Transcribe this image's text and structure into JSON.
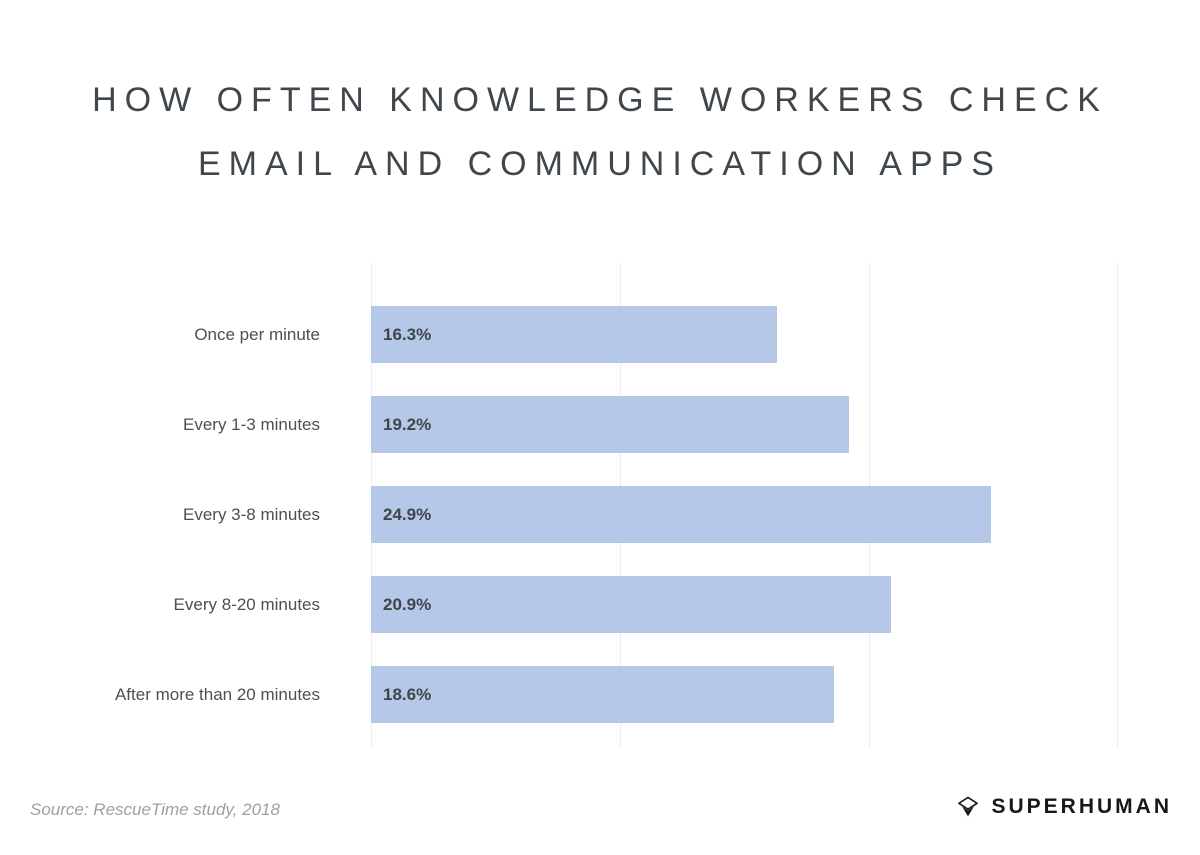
{
  "title": {
    "line1": "HOW OFTEN KNOWLEDGE WORKERS CHECK",
    "line2": "EMAIL AND COMMUNICATION APPS"
  },
  "chart_data": {
    "type": "bar",
    "orientation": "horizontal",
    "title": "How often knowledge workers check email and communication apps",
    "categories": [
      "Once per minute",
      "Every 1-3 minutes",
      "Every 3-8 minutes",
      "Every 8-20 minutes",
      "After more than 20 minutes"
    ],
    "values": [
      16.3,
      19.2,
      24.9,
      20.9,
      18.6
    ],
    "value_labels": [
      "16.3%",
      "19.2%",
      "24.9%",
      "20.9%",
      "18.6%"
    ],
    "xlim": [
      0,
      30
    ],
    "grid": true,
    "gridline_count": 4,
    "bar_color": "#b6c8e7",
    "legend": "none"
  },
  "footer": {
    "source": "Source: RescueTime study, 2018",
    "brand": "SUPERHUMAN",
    "brand_icon": "superhuman-diamond-icon"
  }
}
